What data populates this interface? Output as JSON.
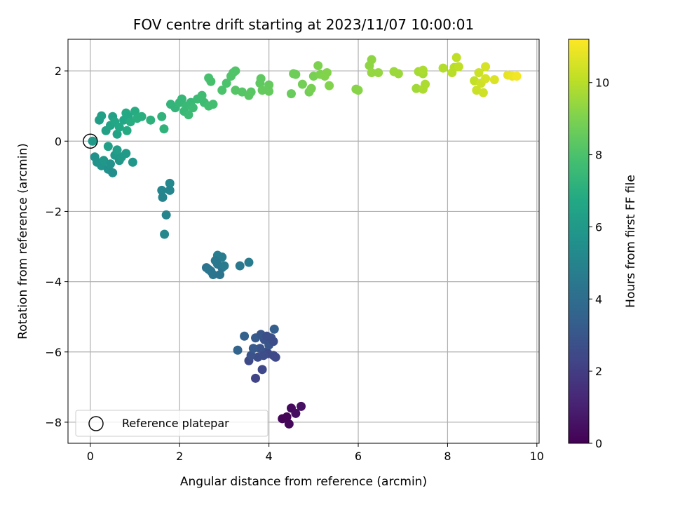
{
  "chart_data": {
    "type": "scatter",
    "title": "FOV centre drift starting at 2023/11/07 10:00:01",
    "xlabel": "Angular distance from reference (arcmin)",
    "ylabel": "Rotation from reference (arcmin)",
    "xlim": [
      -0.5,
      10.05
    ],
    "ylim": [
      -8.6,
      2.9
    ],
    "xticks": [
      0,
      2,
      4,
      6,
      8,
      10
    ],
    "yticks": [
      -8,
      -6,
      -4,
      -2,
      0,
      2
    ],
    "grid": true,
    "legend": {
      "placement": "lower-left",
      "entries": [
        "Reference platepar"
      ]
    },
    "reference_point": {
      "x": 0,
      "y": 0,
      "label": "Reference platepar",
      "marker": "open-circle"
    },
    "colorbar": {
      "label": "Hours from first FF file",
      "colormap": "viridis",
      "range": [
        0,
        11.2
      ],
      "ticks": [
        0,
        2,
        4,
        6,
        8,
        10
      ]
    },
    "points": [
      {
        "x": 4.3,
        "y": -7.9,
        "t": 0.1
      },
      {
        "x": 4.45,
        "y": -8.05,
        "t": 0.2
      },
      {
        "x": 4.5,
        "y": -7.6,
        "t": 0.3
      },
      {
        "x": 4.6,
        "y": -7.75,
        "t": 0.4
      },
      {
        "x": 4.72,
        "y": -7.55,
        "t": 0.5
      },
      {
        "x": 4.4,
        "y": -7.85,
        "t": 0.15
      },
      {
        "x": 3.7,
        "y": -6.75,
        "t": 2.3
      },
      {
        "x": 3.85,
        "y": -6.5,
        "t": 2.4
      },
      {
        "x": 3.55,
        "y": -6.25,
        "t": 2.5
      },
      {
        "x": 3.75,
        "y": -6.15,
        "t": 2.6
      },
      {
        "x": 3.95,
        "y": -6.0,
        "t": 2.7
      },
      {
        "x": 4.1,
        "y": -6.1,
        "t": 2.5
      },
      {
        "x": 3.6,
        "y": -6.1,
        "t": 2.8
      },
      {
        "x": 3.8,
        "y": -5.9,
        "t": 2.9
      },
      {
        "x": 4.0,
        "y": -5.8,
        "t": 3.0
      },
      {
        "x": 3.65,
        "y": -5.9,
        "t": 3.1
      },
      {
        "x": 3.9,
        "y": -5.65,
        "t": 2.9
      },
      {
        "x": 4.05,
        "y": -5.6,
        "t": 2.8
      },
      {
        "x": 3.7,
        "y": -5.6,
        "t": 3.2
      },
      {
        "x": 3.82,
        "y": -5.5,
        "t": 3.0
      },
      {
        "x": 3.95,
        "y": -5.55,
        "t": 2.7
      },
      {
        "x": 4.1,
        "y": -5.7,
        "t": 2.6
      },
      {
        "x": 3.45,
        "y": -5.55,
        "t": 3.5
      },
      {
        "x": 3.3,
        "y": -5.95,
        "t": 3.6
      },
      {
        "x": 4.12,
        "y": -5.35,
        "t": 3.4
      },
      {
        "x": 3.98,
        "y": -6.05,
        "t": 2.5
      },
      {
        "x": 4.15,
        "y": -6.15,
        "t": 2.4
      },
      {
        "x": 3.88,
        "y": -6.1,
        "t": 2.6
      },
      {
        "x": 2.6,
        "y": -3.6,
        "t": 4.2
      },
      {
        "x": 2.7,
        "y": -3.7,
        "t": 4.3
      },
      {
        "x": 2.75,
        "y": -3.8,
        "t": 4.4
      },
      {
        "x": 2.85,
        "y": -3.5,
        "t": 4.5
      },
      {
        "x": 2.95,
        "y": -3.6,
        "t": 4.4
      },
      {
        "x": 2.9,
        "y": -3.8,
        "t": 4.3
      },
      {
        "x": 3.0,
        "y": -3.55,
        "t": 4.6
      },
      {
        "x": 2.85,
        "y": -3.25,
        "t": 4.7
      },
      {
        "x": 2.95,
        "y": -3.3,
        "t": 4.6
      },
      {
        "x": 2.8,
        "y": -3.4,
        "t": 4.5
      },
      {
        "x": 3.35,
        "y": -3.55,
        "t": 4.5
      },
      {
        "x": 3.55,
        "y": -3.45,
        "t": 4.6
      },
      {
        "x": 2.65,
        "y": -3.65,
        "t": 4.4
      },
      {
        "x": 1.6,
        "y": -1.4,
        "t": 5.1
      },
      {
        "x": 1.62,
        "y": -1.6,
        "t": 5.0
      },
      {
        "x": 1.78,
        "y": -1.2,
        "t": 5.2
      },
      {
        "x": 1.78,
        "y": -1.4,
        "t": 5.1
      },
      {
        "x": 1.7,
        "y": -2.1,
        "t": 5.0
      },
      {
        "x": 1.66,
        "y": -2.65,
        "t": 5.2
      },
      {
        "x": 0.1,
        "y": -0.45,
        "t": 5.6
      },
      {
        "x": 0.15,
        "y": -0.6,
        "t": 5.7
      },
      {
        "x": 0.25,
        "y": -0.7,
        "t": 5.8
      },
      {
        "x": 0.3,
        "y": -0.55,
        "t": 5.9
      },
      {
        "x": 0.4,
        "y": -0.8,
        "t": 5.6
      },
      {
        "x": 0.5,
        "y": -0.9,
        "t": 5.5
      },
      {
        "x": 0.45,
        "y": -0.65,
        "t": 5.7
      },
      {
        "x": 0.55,
        "y": -0.4,
        "t": 6.0
      },
      {
        "x": 0.65,
        "y": -0.55,
        "t": 5.9
      },
      {
        "x": 0.7,
        "y": -0.45,
        "t": 6.1
      },
      {
        "x": 0.6,
        "y": -0.25,
        "t": 6.2
      },
      {
        "x": 0.4,
        "y": -0.15,
        "t": 6.3
      },
      {
        "x": 0.8,
        "y": -0.35,
        "t": 6.1
      },
      {
        "x": 0.95,
        "y": -0.6,
        "t": 5.9
      },
      {
        "x": 0.05,
        "y": 0.0,
        "t": 6.0
      },
      {
        "x": 0.2,
        "y": 0.6,
        "t": 6.2
      },
      {
        "x": 0.25,
        "y": 0.72,
        "t": 6.3
      },
      {
        "x": 0.35,
        "y": 0.3,
        "t": 6.4
      },
      {
        "x": 0.45,
        "y": 0.45,
        "t": 6.5
      },
      {
        "x": 0.5,
        "y": 0.7,
        "t": 6.4
      },
      {
        "x": 0.55,
        "y": 0.55,
        "t": 6.6
      },
      {
        "x": 0.6,
        "y": 0.2,
        "t": 6.5
      },
      {
        "x": 0.65,
        "y": 0.4,
        "t": 6.7
      },
      {
        "x": 0.75,
        "y": 0.6,
        "t": 6.6
      },
      {
        "x": 0.8,
        "y": 0.8,
        "t": 6.8
      },
      {
        "x": 0.85,
        "y": 0.7,
        "t": 6.7
      },
      {
        "x": 0.9,
        "y": 0.55,
        "t": 6.9
      },
      {
        "x": 0.82,
        "y": 0.3,
        "t": 6.8
      },
      {
        "x": 1.0,
        "y": 0.85,
        "t": 6.9
      },
      {
        "x": 1.05,
        "y": 0.65,
        "t": 7.0
      },
      {
        "x": 1.15,
        "y": 0.7,
        "t": 7.0
      },
      {
        "x": 1.35,
        "y": 0.6,
        "t": 7.1
      },
      {
        "x": 1.6,
        "y": 0.7,
        "t": 7.2
      },
      {
        "x": 1.65,
        "y": 0.35,
        "t": 7.2
      },
      {
        "x": 1.8,
        "y": 1.05,
        "t": 7.3
      },
      {
        "x": 1.9,
        "y": 0.95,
        "t": 7.3
      },
      {
        "x": 2.0,
        "y": 1.1,
        "t": 7.4
      },
      {
        "x": 2.05,
        "y": 1.2,
        "t": 7.4
      },
      {
        "x": 2.1,
        "y": 0.85,
        "t": 7.5
      },
      {
        "x": 2.15,
        "y": 1.0,
        "t": 7.5
      },
      {
        "x": 2.2,
        "y": 0.75,
        "t": 7.6
      },
      {
        "x": 2.25,
        "y": 1.1,
        "t": 7.5
      },
      {
        "x": 2.3,
        "y": 0.95,
        "t": 7.6
      },
      {
        "x": 2.4,
        "y": 1.2,
        "t": 7.6
      },
      {
        "x": 2.5,
        "y": 1.3,
        "t": 7.7
      },
      {
        "x": 2.55,
        "y": 1.1,
        "t": 7.7
      },
      {
        "x": 2.65,
        "y": 1.0,
        "t": 7.8
      },
      {
        "x": 2.75,
        "y": 1.05,
        "t": 7.8
      },
      {
        "x": 2.65,
        "y": 1.8,
        "t": 7.9
      },
      {
        "x": 2.7,
        "y": 1.7,
        "t": 7.9
      },
      {
        "x": 2.95,
        "y": 1.45,
        "t": 8.0
      },
      {
        "x": 3.05,
        "y": 1.65,
        "t": 8.0
      },
      {
        "x": 3.15,
        "y": 1.85,
        "t": 8.1
      },
      {
        "x": 3.2,
        "y": 1.95,
        "t": 8.1
      },
      {
        "x": 3.25,
        "y": 2.0,
        "t": 8.1
      },
      {
        "x": 3.25,
        "y": 1.45,
        "t": 8.2
      },
      {
        "x": 3.4,
        "y": 1.4,
        "t": 8.2
      },
      {
        "x": 3.55,
        "y": 1.3,
        "t": 8.3
      },
      {
        "x": 3.6,
        "y": 1.4,
        "t": 8.3
      },
      {
        "x": 3.8,
        "y": 1.65,
        "t": 8.4
      },
      {
        "x": 3.82,
        "y": 1.78,
        "t": 8.4
      },
      {
        "x": 3.85,
        "y": 1.45,
        "t": 8.5
      },
      {
        "x": 4.0,
        "y": 1.6,
        "t": 8.5
      },
      {
        "x": 4.0,
        "y": 1.42,
        "t": 8.5
      },
      {
        "x": 4.5,
        "y": 1.35,
        "t": 8.6
      },
      {
        "x": 4.55,
        "y": 1.92,
        "t": 8.7
      },
      {
        "x": 4.6,
        "y": 1.9,
        "t": 8.7
      },
      {
        "x": 4.75,
        "y": 1.62,
        "t": 8.8
      },
      {
        "x": 4.9,
        "y": 1.4,
        "t": 8.8
      },
      {
        "x": 4.95,
        "y": 1.5,
        "t": 8.9
      },
      {
        "x": 5.0,
        "y": 1.85,
        "t": 8.9
      },
      {
        "x": 5.1,
        "y": 2.15,
        "t": 9.0
      },
      {
        "x": 5.15,
        "y": 1.9,
        "t": 9.0
      },
      {
        "x": 5.25,
        "y": 1.85,
        "t": 9.1
      },
      {
        "x": 5.3,
        "y": 1.95,
        "t": 9.1
      },
      {
        "x": 5.35,
        "y": 1.58,
        "t": 9.1
      },
      {
        "x": 5.95,
        "y": 1.48,
        "t": 9.2
      },
      {
        "x": 6.0,
        "y": 1.45,
        "t": 9.2
      },
      {
        "x": 6.25,
        "y": 2.15,
        "t": 9.3
      },
      {
        "x": 6.3,
        "y": 2.32,
        "t": 9.3
      },
      {
        "x": 6.3,
        "y": 1.95,
        "t": 9.4
      },
      {
        "x": 6.45,
        "y": 1.95,
        "t": 9.4
      },
      {
        "x": 6.8,
        "y": 1.98,
        "t": 9.5
      },
      {
        "x": 6.9,
        "y": 1.92,
        "t": 9.5
      },
      {
        "x": 7.3,
        "y": 1.5,
        "t": 9.6
      },
      {
        "x": 7.35,
        "y": 1.98,
        "t": 9.7
      },
      {
        "x": 7.45,
        "y": 1.92,
        "t": 9.7
      },
      {
        "x": 7.45,
        "y": 2.02,
        "t": 9.8
      },
      {
        "x": 7.5,
        "y": 1.62,
        "t": 9.8
      },
      {
        "x": 7.45,
        "y": 1.48,
        "t": 9.8
      },
      {
        "x": 7.9,
        "y": 2.08,
        "t": 9.9
      },
      {
        "x": 8.1,
        "y": 1.95,
        "t": 10.0
      },
      {
        "x": 8.15,
        "y": 2.1,
        "t": 10.0
      },
      {
        "x": 8.2,
        "y": 2.38,
        "t": 10.1
      },
      {
        "x": 8.25,
        "y": 2.12,
        "t": 10.1
      },
      {
        "x": 8.6,
        "y": 1.72,
        "t": 10.2
      },
      {
        "x": 8.65,
        "y": 1.45,
        "t": 10.3
      },
      {
        "x": 8.7,
        "y": 1.95,
        "t": 10.3
      },
      {
        "x": 8.75,
        "y": 1.65,
        "t": 10.4
      },
      {
        "x": 8.8,
        "y": 1.38,
        "t": 10.4
      },
      {
        "x": 8.85,
        "y": 1.78,
        "t": 10.5
      },
      {
        "x": 8.85,
        "y": 2.12,
        "t": 10.5
      },
      {
        "x": 9.05,
        "y": 1.75,
        "t": 10.6
      },
      {
        "x": 9.35,
        "y": 1.88,
        "t": 10.8
      },
      {
        "x": 9.45,
        "y": 1.85,
        "t": 10.9
      },
      {
        "x": 9.55,
        "y": 1.85,
        "t": 11.0
      }
    ]
  }
}
